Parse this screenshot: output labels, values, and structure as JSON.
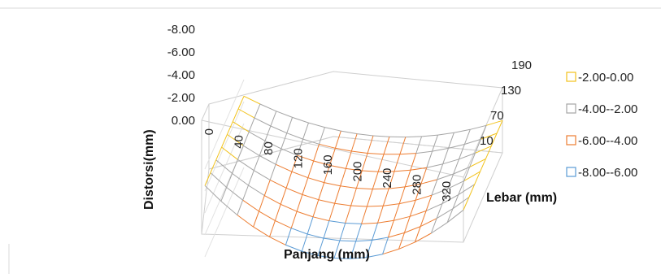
{
  "chart_data": {
    "type": "surface",
    "title": "",
    "xlabel": "Panjang (mm)",
    "ylabel": "Lebar (mm)",
    "zlabel": "Distorsi(mm)",
    "x_ticks": [
      "0",
      "40",
      "80",
      "120",
      "160",
      "200",
      "240",
      "280",
      "320"
    ],
    "y_ticks": [
      "10",
      "70",
      "130",
      "190"
    ],
    "z_ticks": [
      "0.00",
      "-2.00",
      "-4.00",
      "-6.00",
      "-8.00"
    ],
    "zlim": [
      -8,
      0
    ],
    "legend": [
      {
        "label": "-2.00-0.00",
        "color": "#f2c21b"
      },
      {
        "label": "-4.00--2.00",
        "color": "#a5a5a5"
      },
      {
        "label": "-6.00--4.00",
        "color": "#ed7d31"
      },
      {
        "label": "-8.00--6.00",
        "color": "#5b9bd5"
      }
    ],
    "legend_position": "right",
    "surface_shape": "saddle-shaped; ends of Panjang near -1.5 mm, middle lowest near -7 mm at Lebar 10, rising toward about -3 mm at Lebar 190"
  }
}
